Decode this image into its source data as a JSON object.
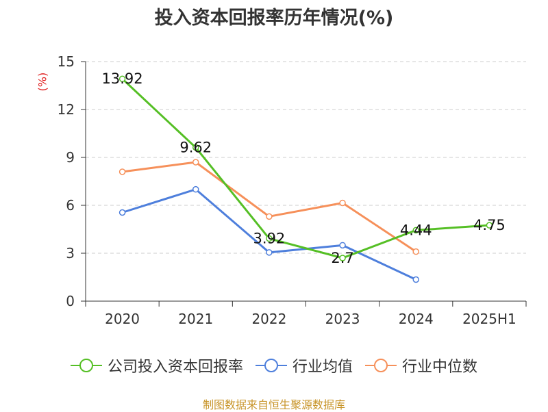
{
  "title": "投入资本回报率历年情况(%)",
  "unit_label": "(%)",
  "source": "制图数据来自恒生聚源数据库",
  "colors": {
    "series1": "#55bf25",
    "series2": "#4e7fdc",
    "series3": "#f6905a",
    "grid": "#cccccc",
    "axis": "#333333"
  },
  "chart_data": {
    "type": "line",
    "categories": [
      "2020",
      "2021",
      "2022",
      "2023",
      "2024",
      "2025H1"
    ],
    "ylim": [
      0,
      15
    ],
    "yticks": [
      "0",
      "3",
      "6",
      "9",
      "12",
      "15"
    ],
    "grid": true,
    "legend": "bottom",
    "series": [
      {
        "name": "公司投入资本回报率",
        "values": [
          13.92,
          9.62,
          3.92,
          2.7,
          4.44,
          4.75
        ],
        "labels": [
          "13.92",
          "9.62",
          "3.92",
          "2.7",
          "4.44",
          "4.75"
        ]
      },
      {
        "name": "行业均值",
        "values": [
          5.55,
          7.0,
          3.05,
          3.5,
          1.35,
          null
        ]
      },
      {
        "name": "行业中位数",
        "values": [
          8.1,
          8.7,
          5.3,
          6.15,
          3.1,
          null
        ]
      }
    ]
  }
}
